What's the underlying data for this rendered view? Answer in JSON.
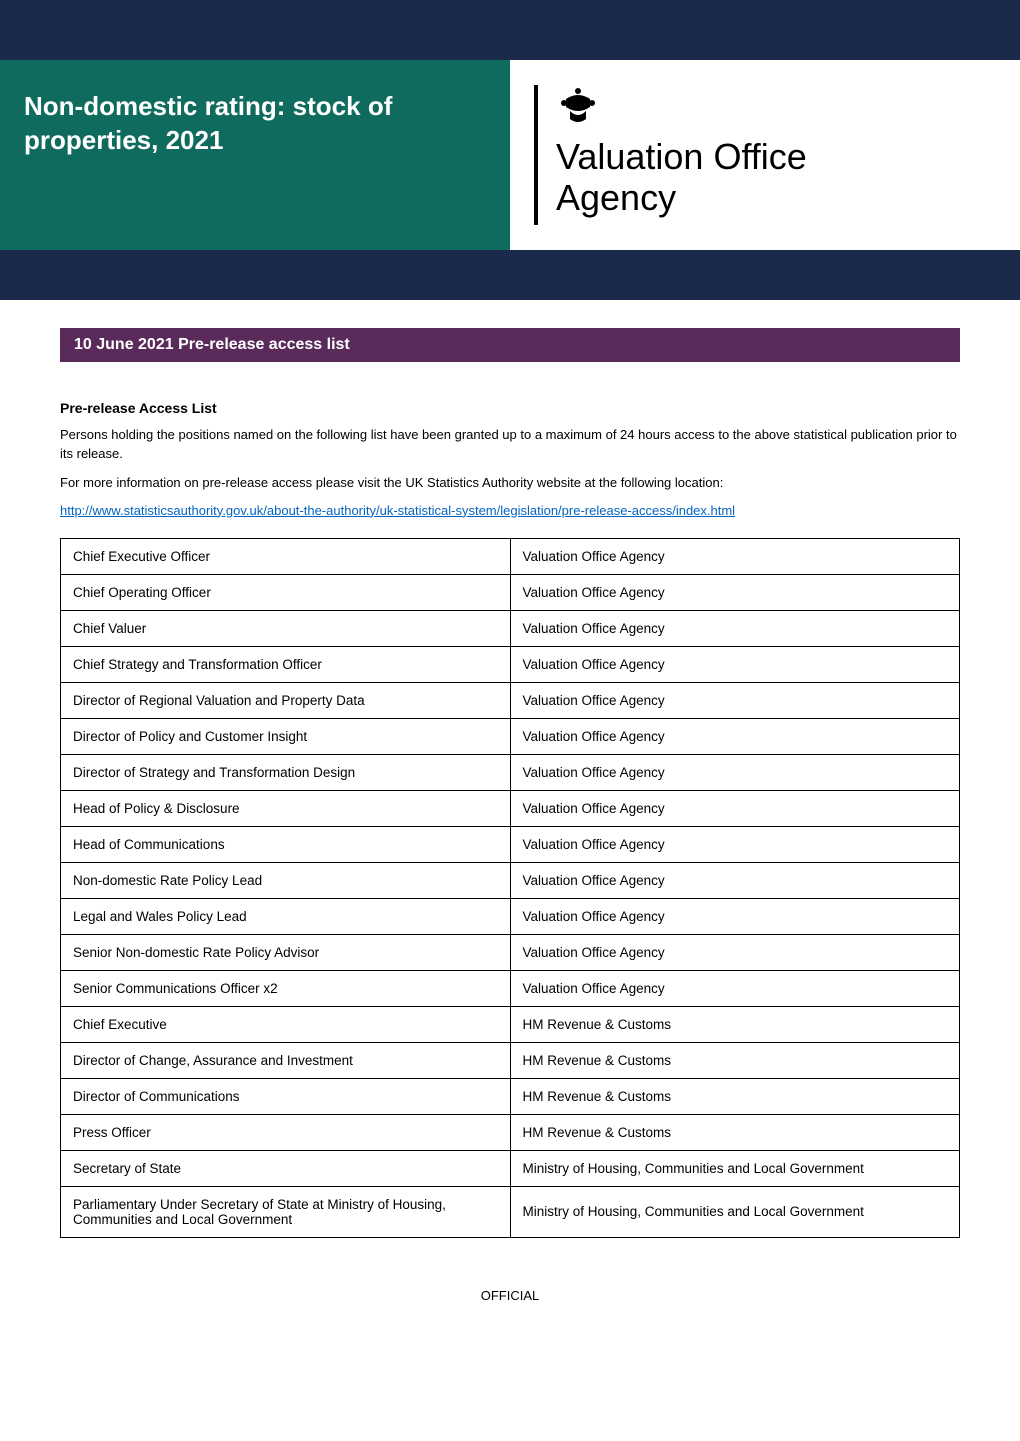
{
  "colors": {
    "dark_navy": "#1b2a4a",
    "teal_green": "#0e6b5e",
    "purple": "#5a2a5a",
    "link_blue": "#0563c1",
    "white": "#ffffff",
    "black": "#000000"
  },
  "header": {
    "title": "Non-domestic rating: stock of properties, 2021",
    "agency_line1": "Valuation Office",
    "agency_line2": "Agency"
  },
  "section_bar": "10 June 2021 Pre-release access list",
  "subhead": "Pre-release Access List",
  "para1": "Persons holding the positions named on the following list have been granted up to a maximum of 24 hours access to the above statistical publication prior to its release.",
  "para2": "For more information on pre-release access please visit the UK Statistics Authority website at the following location:",
  "link": "http://www.statisticsauthority.gov.uk/about-the-authority/uk-statistical-system/legislation/pre-release-access/index.html",
  "table": {
    "columns": [
      "role",
      "organisation"
    ],
    "rows": [
      [
        "Chief Executive Officer",
        "Valuation Office Agency"
      ],
      [
        "Chief Operating Officer",
        "Valuation Office Agency"
      ],
      [
        "Chief Valuer",
        "Valuation Office Agency"
      ],
      [
        "Chief Strategy and Transformation Officer",
        "Valuation Office Agency"
      ],
      [
        "Director of Regional Valuation and Property Data",
        "Valuation Office Agency"
      ],
      [
        "Director of Policy and Customer Insight",
        "Valuation Office Agency"
      ],
      [
        "Director of Strategy and Transformation Design",
        "Valuation Office Agency"
      ],
      [
        "Head of Policy & Disclosure",
        "Valuation Office Agency"
      ],
      [
        "Head of Communications",
        "Valuation Office Agency"
      ],
      [
        "Non-domestic Rate Policy Lead",
        "Valuation Office Agency"
      ],
      [
        "Legal and Wales Policy Lead",
        "Valuation Office Agency"
      ],
      [
        "Senior Non-domestic Rate Policy Advisor",
        "Valuation Office Agency"
      ],
      [
        "Senior Communications Officer x2",
        "Valuation Office Agency"
      ],
      [
        "Chief Executive",
        "HM Revenue & Customs"
      ],
      [
        "Director of Change, Assurance and Investment",
        "HM Revenue & Customs"
      ],
      [
        "Director of Communications",
        "HM Revenue & Customs"
      ],
      [
        "Press Officer",
        "HM Revenue & Customs"
      ],
      [
        "Secretary of State",
        "Ministry of Housing, Communities and Local Government"
      ],
      [
        "Parliamentary Under Secretary of State at Ministry of Housing, Communities and Local Government",
        "Ministry of Housing, Communities and Local Government"
      ]
    ]
  },
  "footer": "OFFICIAL"
}
